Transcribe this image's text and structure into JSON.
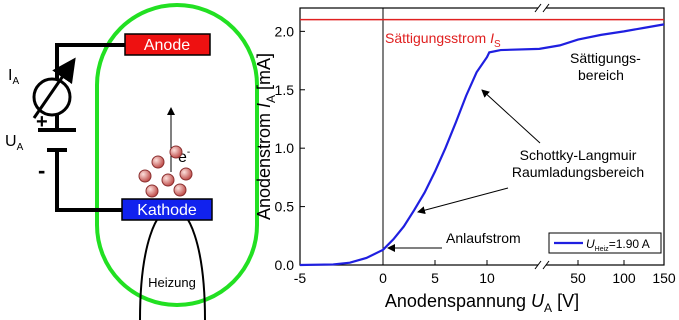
{
  "diagram": {
    "anode": "Anode",
    "cathode": "Kathode",
    "heater": "Heizung",
    "current_symbol": "I",
    "current_sub": "A",
    "voltage_symbol": "U",
    "voltage_sub": "A",
    "plus": "+",
    "minus": "-",
    "electron": "e",
    "electron_sup": "-"
  },
  "chart_data": {
    "type": "line",
    "x": [
      -5,
      -3,
      -2,
      -1,
      0,
      1,
      2,
      3,
      4,
      5,
      6,
      7,
      8,
      9,
      10,
      11,
      16,
      33,
      42,
      50,
      75,
      100,
      125,
      150
    ],
    "series": [
      {
        "color": "#1f1fe0",
        "values": [
          0,
          0.005,
          0.02,
          0.06,
          0.13,
          0.22,
          0.33,
          0.47,
          0.62,
          0.8,
          1.0,
          1.22,
          1.45,
          1.65,
          1.78,
          1.82,
          1.84,
          1.85,
          1.88,
          1.93,
          1.97,
          2.0,
          2.03,
          2.06
        ]
      }
    ],
    "xlim": [
      -5,
      150
    ],
    "ylim": [
      0,
      2.2
    ],
    "xticks": [
      -5,
      0,
      5,
      10,
      50,
      100,
      150
    ],
    "yticks": [
      {
        "value": 0,
        "label": "0.0"
      },
      {
        "value": 0.5,
        "label": "0.5"
      },
      {
        "value": 1,
        "label": "1.0"
      },
      {
        "value": 1.5,
        "label": "1.5"
      },
      {
        "value": 2,
        "label": "2.0"
      }
    ],
    "xlabel": {
      "text": "Anodenspannung ",
      "symbol": "U",
      "sub": "A",
      "unit": " [V]"
    },
    "ylabel": {
      "text": "Anodenstrom ",
      "symbol": "I",
      "sub": "A",
      "unit": " [mA]"
    },
    "saturation": {
      "value": 2.1,
      "color": "#e02020",
      "text": "Sättigungsstrom ",
      "symbol": "I",
      "sub": "S"
    },
    "vline": 0,
    "annotations": {
      "saturation_region": [
        "Sättigungs-",
        "bereich"
      ],
      "space_charge": [
        "Schottky-Langmuir",
        "Raumladungsbereich"
      ],
      "onset": "Anlaufstrom"
    },
    "legend": {
      "symbol": "U",
      "sub": "Heiz",
      "text": "=1.90 A"
    }
  }
}
